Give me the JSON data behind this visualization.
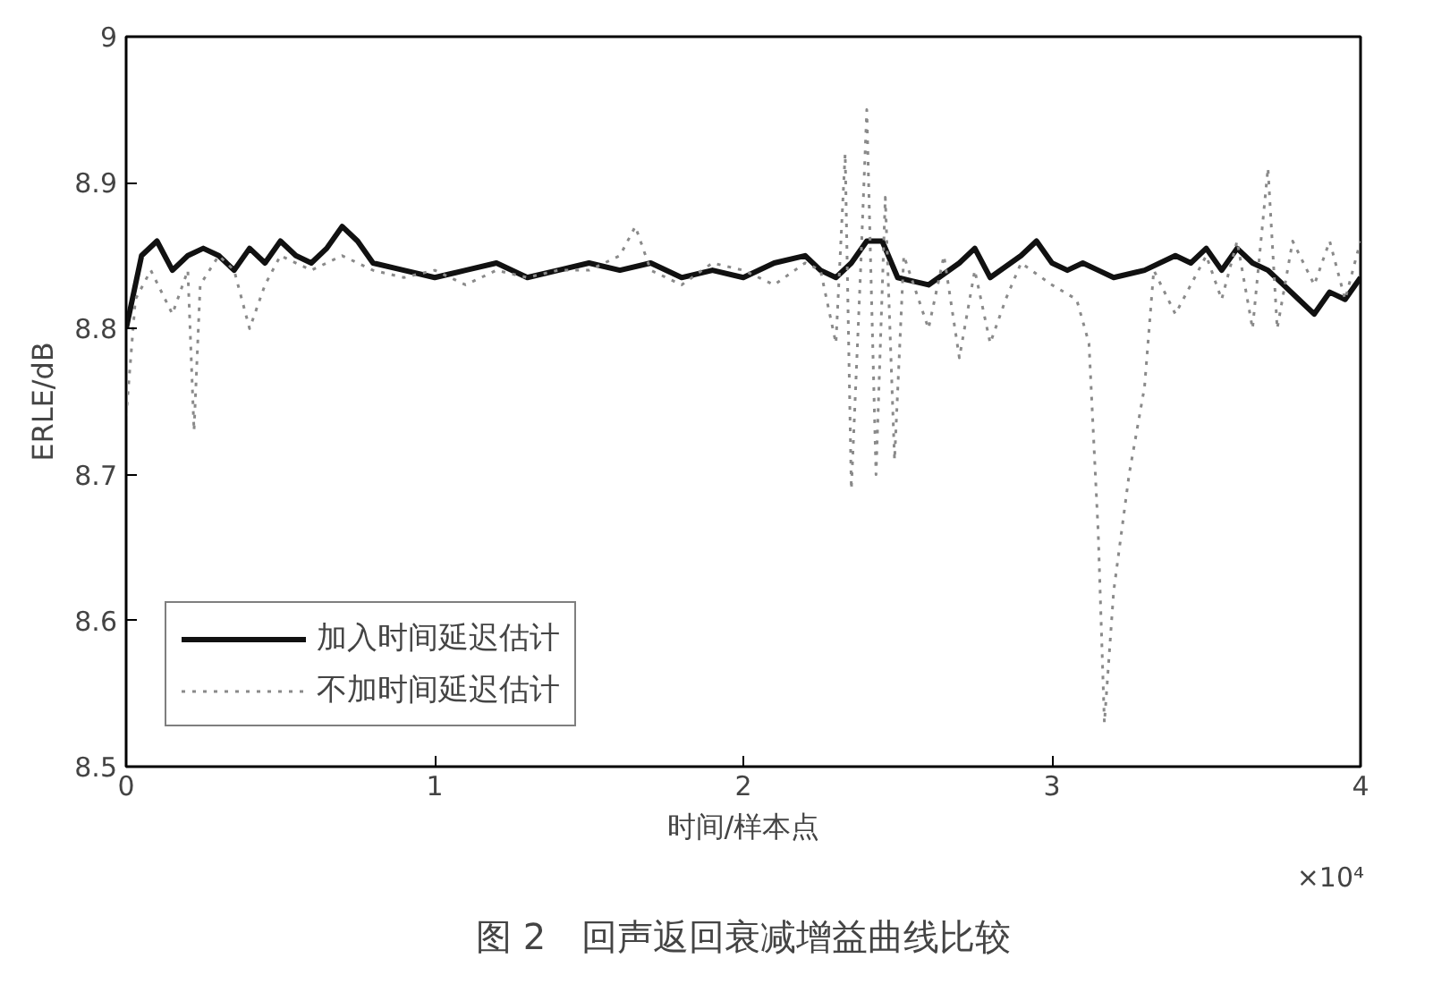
{
  "chart_data": {
    "type": "line",
    "title": "图 2　回声返回衰减增益曲线比较",
    "xlabel": "时间/样本点",
    "ylabel": "ERLE/dB",
    "annotations": [
      "×10⁴"
    ],
    "xlim": [
      0,
      4
    ],
    "ylim": [
      8.5,
      9
    ],
    "xticks": [
      0,
      1,
      2,
      3,
      4
    ],
    "yticks": [
      8.5,
      8.6,
      8.7,
      8.8,
      8.9,
      9
    ],
    "grid": false,
    "legend": "bottom left",
    "marker": "none",
    "series": [
      {
        "name": "加入时间延迟估计",
        "color": "#111111",
        "line_style": "solid",
        "x": [
          0,
          0.05,
          0.1,
          0.15,
          0.2,
          0.25,
          0.3,
          0.35,
          0.4,
          0.45,
          0.5,
          0.55,
          0.6,
          0.65,
          0.7,
          0.75,
          0.8,
          0.9,
          1.0,
          1.1,
          1.2,
          1.3,
          1.4,
          1.5,
          1.6,
          1.7,
          1.8,
          1.9,
          2.0,
          2.1,
          2.2,
          2.25,
          2.3,
          2.35,
          2.4,
          2.45,
          2.5,
          2.6,
          2.7,
          2.75,
          2.8,
          2.9,
          2.95,
          3.0,
          3.05,
          3.1,
          3.15,
          3.2,
          3.3,
          3.4,
          3.45,
          3.5,
          3.55,
          3.6,
          3.65,
          3.7,
          3.75,
          3.8,
          3.85,
          3.9,
          3.95,
          4.0
        ],
        "values": [
          8.8,
          8.85,
          8.86,
          8.84,
          8.85,
          8.855,
          8.85,
          8.84,
          8.855,
          8.845,
          8.86,
          8.85,
          8.845,
          8.855,
          8.87,
          8.86,
          8.845,
          8.84,
          8.835,
          8.84,
          8.845,
          8.835,
          8.84,
          8.845,
          8.84,
          8.845,
          8.835,
          8.84,
          8.835,
          8.845,
          8.85,
          8.84,
          8.835,
          8.845,
          8.86,
          8.86,
          8.835,
          8.83,
          8.845,
          8.855,
          8.835,
          8.85,
          8.86,
          8.845,
          8.84,
          8.845,
          8.84,
          8.835,
          8.84,
          8.85,
          8.845,
          8.855,
          8.84,
          8.855,
          8.845,
          8.84,
          8.83,
          8.82,
          8.81,
          8.825,
          8.82,
          8.835
        ]
      },
      {
        "name": "不加时间延迟估计",
        "color": "#8a8a8a",
        "line_style": "dotted",
        "x": [
          0,
          0.03,
          0.08,
          0.15,
          0.2,
          0.22,
          0.24,
          0.3,
          0.35,
          0.4,
          0.45,
          0.5,
          0.6,
          0.7,
          0.8,
          0.9,
          1.0,
          1.1,
          1.2,
          1.3,
          1.4,
          1.5,
          1.6,
          1.65,
          1.7,
          1.8,
          1.9,
          2.0,
          2.1,
          2.2,
          2.25,
          2.3,
          2.33,
          2.35,
          2.38,
          2.4,
          2.43,
          2.46,
          2.49,
          2.52,
          2.6,
          2.65,
          2.7,
          2.75,
          2.8,
          2.85,
          2.9,
          3.0,
          3.08,
          3.12,
          3.15,
          3.17,
          3.2,
          3.25,
          3.3,
          3.33,
          3.4,
          3.45,
          3.5,
          3.55,
          3.6,
          3.65,
          3.7,
          3.73,
          3.78,
          3.85,
          3.9,
          3.95,
          4.0
        ],
        "values": [
          8.74,
          8.82,
          8.84,
          8.81,
          8.84,
          8.73,
          8.83,
          8.85,
          8.84,
          8.8,
          8.83,
          8.85,
          8.84,
          8.85,
          8.84,
          8.835,
          8.84,
          8.83,
          8.84,
          8.835,
          8.84,
          8.84,
          8.85,
          8.87,
          8.84,
          8.83,
          8.845,
          8.84,
          8.83,
          8.845,
          8.84,
          8.79,
          8.92,
          8.69,
          8.84,
          8.95,
          8.7,
          8.89,
          8.71,
          8.85,
          8.8,
          8.85,
          8.78,
          8.84,
          8.79,
          8.82,
          8.845,
          8.83,
          8.82,
          8.79,
          8.66,
          8.53,
          8.62,
          8.7,
          8.76,
          8.84,
          8.81,
          8.83,
          8.85,
          8.82,
          8.86,
          8.8,
          8.91,
          8.8,
          8.86,
          8.83,
          8.86,
          8.82,
          8.86
        ]
      }
    ]
  }
}
